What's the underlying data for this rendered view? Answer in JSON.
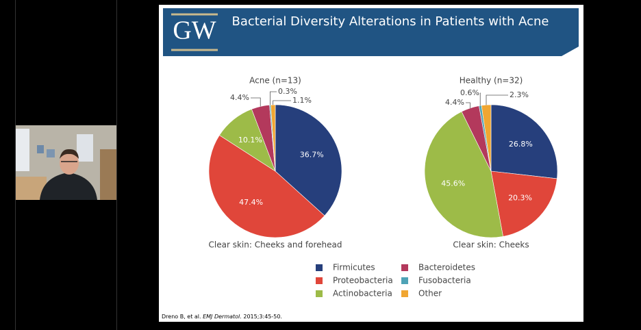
{
  "slide": {
    "logo": "GW",
    "title": "Bacterial Diversity Alterations in Patients with Acne",
    "citation": [
      "Dreno B, et al. ",
      "EMJ Dermatol.",
      " 2015;3:45-50."
    ]
  },
  "chart_data": [
    {
      "type": "pie",
      "title": "Acne (n=13)",
      "caption": "Clear skin: Cheeks and forehead",
      "categories": [
        "Firmicutes",
        "Proteobacteria",
        "Actinobacteria",
        "Bacteroidetes",
        "Fusobacteria",
        "Other"
      ],
      "values": [
        36.7,
        47.4,
        10.1,
        4.4,
        0.3,
        1.1
      ],
      "value_labels": [
        "36.7%",
        "47.4%",
        "10.1%",
        "4.4%",
        "0.3%",
        "1.1%"
      ],
      "colors": [
        "#263f7c",
        "#e0463a",
        "#9dbb48",
        "#b3395c",
        "#4ea3b6",
        "#f0a632"
      ]
    },
    {
      "type": "pie",
      "title": "Healthy (n=32)",
      "caption": "Clear skin: Cheeks",
      "categories": [
        "Firmicutes",
        "Proteobacteria",
        "Actinobacteria",
        "Bacteroidetes",
        "Fusobacteria",
        "Other"
      ],
      "values": [
        26.8,
        20.3,
        45.6,
        4.4,
        0.6,
        2.3
      ],
      "value_labels": [
        "26.8%",
        "20.3%",
        "45.6%",
        "4.4%",
        "0.6%",
        "2.3%"
      ],
      "colors": [
        "#263f7c",
        "#e0463a",
        "#9dbb48",
        "#b3395c",
        "#4ea3b6",
        "#f0a632"
      ]
    }
  ]
}
